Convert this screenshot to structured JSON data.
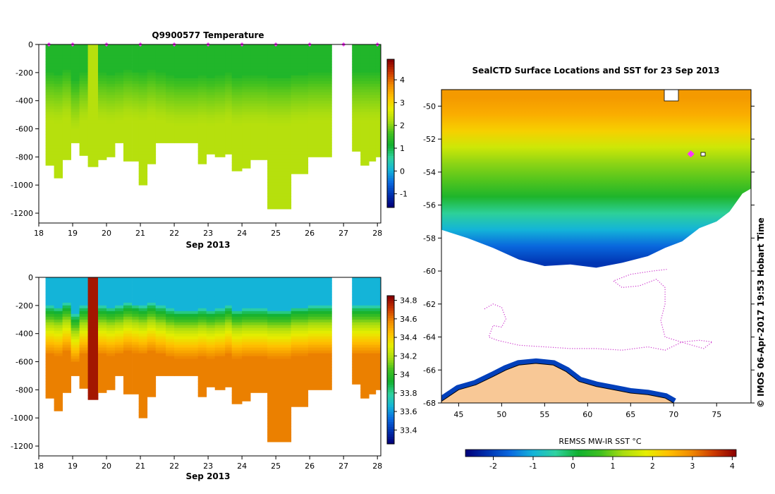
{
  "colors": {
    "ramp": [
      "#00007a",
      "#0033b0",
      "#0a6ae0",
      "#14b4d8",
      "#2fd2a0",
      "#10b030",
      "#40c020",
      "#aadd10",
      "#e6ee00",
      "#ffc000",
      "#f08a00",
      "#cc3a00",
      "#8a0000"
    ],
    "land": "#f8c896",
    "track": "#cc33cc",
    "marker": "#ff33ff"
  },
  "page": {
    "credit": "© IMOS 06-Apr-2017 19:53 Hobart Time"
  },
  "chart_data": [
    {
      "type": "heatmap",
      "title": "Q9900577  Temperature",
      "xlabel": "Sep 2013",
      "ylabel": "",
      "xlim": [
        18,
        28.1
      ],
      "ylim": [
        -1270,
        0
      ],
      "xticks": [
        18,
        19,
        20,
        21,
        22,
        23,
        24,
        25,
        26,
        27,
        28
      ],
      "yticks": [
        0,
        -200,
        -400,
        -600,
        -800,
        -1000,
        -1200
      ],
      "ytick_labels": [
        "0",
        "-200",
        "-400",
        "-600",
        "-800",
        "-1000",
        "-1200"
      ],
      "profile_times": [
        18.3,
        19.0,
        20.0,
        21.0,
        22.0,
        23.0,
        24.0,
        25.0,
        26.0,
        27.0,
        28.0
      ],
      "profiles": [
        {
          "x0": 18.2,
          "x1": 18.45,
          "surface": 1.3,
          "mixed_depth": 200,
          "deep": 2.3,
          "max_depth": 860
        },
        {
          "x0": 18.45,
          "x1": 18.7,
          "surface": 1.3,
          "mixed_depth": 210,
          "deep": 2.3,
          "max_depth": 950
        },
        {
          "x0": 18.7,
          "x1": 18.95,
          "surface": 1.3,
          "mixed_depth": 180,
          "deep": 2.3,
          "max_depth": 820
        },
        {
          "x0": 18.95,
          "x1": 19.2,
          "surface": 1.3,
          "mixed_depth": 260,
          "deep": 2.3,
          "max_depth": 700
        },
        {
          "x0": 19.2,
          "x1": 19.45,
          "surface": 1.3,
          "mixed_depth": 200,
          "deep": 2.3,
          "max_depth": 790
        },
        {
          "x0": 19.45,
          "x1": 19.75,
          "surface": 2.3,
          "mixed_depth": 0,
          "deep": 2.3,
          "max_depth": 870
        },
        {
          "x0": 19.75,
          "x1": 20.0,
          "surface": 1.3,
          "mixed_depth": 200,
          "deep": 2.3,
          "max_depth": 820
        },
        {
          "x0": 20.0,
          "x1": 20.25,
          "surface": 1.3,
          "mixed_depth": 210,
          "deep": 2.3,
          "max_depth": 800
        },
        {
          "x0": 20.25,
          "x1": 20.5,
          "surface": 1.3,
          "mixed_depth": 200,
          "deep": 2.3,
          "max_depth": 700
        },
        {
          "x0": 20.5,
          "x1": 20.75,
          "surface": 1.3,
          "mixed_depth": 180,
          "deep": 2.3,
          "max_depth": 830
        },
        {
          "x0": 20.75,
          "x1": 20.95,
          "surface": 1.3,
          "mixed_depth": 190,
          "deep": 2.3,
          "max_depth": 830
        },
        {
          "x0": 20.95,
          "x1": 21.2,
          "surface": 1.3,
          "mixed_depth": 200,
          "deep": 2.3,
          "max_depth": 1000
        },
        {
          "x0": 21.2,
          "x1": 21.45,
          "surface": 1.3,
          "mixed_depth": 180,
          "deep": 2.3,
          "max_depth": 850
        },
        {
          "x0": 21.45,
          "x1": 21.75,
          "surface": 1.3,
          "mixed_depth": 200,
          "deep": 2.3,
          "max_depth": 700
        },
        {
          "x0": 21.75,
          "x1": 22.0,
          "surface": 1.3,
          "mixed_depth": 220,
          "deep": 2.3,
          "max_depth": 700
        },
        {
          "x0": 22.0,
          "x1": 22.7,
          "surface": 1.3,
          "mixed_depth": 230,
          "deep": 2.3,
          "max_depth": 700
        },
        {
          "x0": 22.7,
          "x1": 22.95,
          "surface": 1.3,
          "mixed_depth": 220,
          "deep": 2.3,
          "max_depth": 850
        },
        {
          "x0": 22.95,
          "x1": 23.2,
          "surface": 1.3,
          "mixed_depth": 230,
          "deep": 2.3,
          "max_depth": 780
        },
        {
          "x0": 23.2,
          "x1": 23.5,
          "surface": 1.3,
          "mixed_depth": 220,
          "deep": 2.3,
          "max_depth": 800
        },
        {
          "x0": 23.5,
          "x1": 23.7,
          "surface": 1.3,
          "mixed_depth": 200,
          "deep": 2.3,
          "max_depth": 780
        },
        {
          "x0": 23.7,
          "x1": 24.0,
          "surface": 1.3,
          "mixed_depth": 230,
          "deep": 2.3,
          "max_depth": 900
        },
        {
          "x0": 24.0,
          "x1": 24.25,
          "surface": 1.3,
          "mixed_depth": 220,
          "deep": 2.3,
          "max_depth": 880
        },
        {
          "x0": 24.25,
          "x1": 24.75,
          "surface": 1.3,
          "mixed_depth": 220,
          "deep": 2.3,
          "max_depth": 820
        },
        {
          "x0": 24.75,
          "x1": 25.45,
          "surface": 1.3,
          "mixed_depth": 230,
          "deep": 2.3,
          "max_depth": 1170
        },
        {
          "x0": 25.45,
          "x1": 25.95,
          "surface": 1.3,
          "mixed_depth": 210,
          "deep": 2.3,
          "max_depth": 920
        },
        {
          "x0": 25.95,
          "x1": 26.65,
          "surface": 1.3,
          "mixed_depth": 200,
          "deep": 2.3,
          "max_depth": 800
        },
        {
          "x0": 27.25,
          "x1": 27.5,
          "surface": 1.3,
          "mixed_depth": 200,
          "deep": 2.3,
          "max_depth": 760
        },
        {
          "x0": 27.5,
          "x1": 27.75,
          "surface": 1.3,
          "mixed_depth": 200,
          "deep": 2.3,
          "max_depth": 860
        },
        {
          "x0": 27.75,
          "x1": 27.95,
          "surface": 1.3,
          "mixed_depth": 200,
          "deep": 2.3,
          "max_depth": 830
        },
        {
          "x0": 27.95,
          "x1": 28.1,
          "surface": 1.3,
          "mixed_depth": 200,
          "deep": 2.3,
          "max_depth": 800
        }
      ],
      "colorbar": {
        "vmin": -1.6,
        "vmax": 4.9,
        "ticks": [
          -1,
          0,
          1,
          2,
          3,
          4
        ]
      }
    },
    {
      "type": "heatmap",
      "title": "",
      "xlabel": "Sep 2013",
      "ylabel": "",
      "xlim": [
        18,
        28.1
      ],
      "ylim": [
        -1270,
        0
      ],
      "xticks": [
        18,
        19,
        20,
        21,
        22,
        23,
        24,
        25,
        26,
        27,
        28
      ],
      "yticks": [
        0,
        -200,
        -400,
        -600,
        -800,
        -1000,
        -1200
      ],
      "ytick_labels": [
        "0",
        "-200",
        "-400",
        "-600",
        "-800",
        "-1000",
        "-1200"
      ],
      "profile_times": [],
      "profiles": [
        {
          "x0": 18.2,
          "x1": 18.45,
          "surface": 33.65,
          "mixed_depth": 200,
          "deep": 34.6,
          "max_depth": 860
        },
        {
          "x0": 18.45,
          "x1": 18.7,
          "surface": 33.65,
          "mixed_depth": 210,
          "deep": 34.6,
          "max_depth": 950
        },
        {
          "x0": 18.7,
          "x1": 18.95,
          "surface": 33.65,
          "mixed_depth": 180,
          "deep": 34.6,
          "max_depth": 820
        },
        {
          "x0": 18.95,
          "x1": 19.2,
          "surface": 33.65,
          "mixed_depth": 260,
          "deep": 34.6,
          "max_depth": 700
        },
        {
          "x0": 19.2,
          "x1": 19.45,
          "surface": 33.65,
          "mixed_depth": 200,
          "deep": 34.6,
          "max_depth": 790
        },
        {
          "x0": 19.45,
          "x1": 19.75,
          "surface": 34.8,
          "mixed_depth": 0,
          "deep": 34.8,
          "max_depth": 870
        },
        {
          "x0": 19.75,
          "x1": 20.0,
          "surface": 33.65,
          "mixed_depth": 200,
          "deep": 34.6,
          "max_depth": 820
        },
        {
          "x0": 20.0,
          "x1": 20.25,
          "surface": 33.65,
          "mixed_depth": 210,
          "deep": 34.6,
          "max_depth": 800
        },
        {
          "x0": 20.25,
          "x1": 20.5,
          "surface": 33.65,
          "mixed_depth": 200,
          "deep": 34.6,
          "max_depth": 700
        },
        {
          "x0": 20.5,
          "x1": 20.75,
          "surface": 33.65,
          "mixed_depth": 180,
          "deep": 34.6,
          "max_depth": 830
        },
        {
          "x0": 20.75,
          "x1": 20.95,
          "surface": 33.65,
          "mixed_depth": 190,
          "deep": 34.6,
          "max_depth": 830
        },
        {
          "x0": 20.95,
          "x1": 21.2,
          "surface": 33.65,
          "mixed_depth": 200,
          "deep": 34.6,
          "max_depth": 1000
        },
        {
          "x0": 21.2,
          "x1": 21.45,
          "surface": 33.65,
          "mixed_depth": 180,
          "deep": 34.6,
          "max_depth": 850
        },
        {
          "x0": 21.45,
          "x1": 21.75,
          "surface": 33.65,
          "mixed_depth": 200,
          "deep": 34.6,
          "max_depth": 700
        },
        {
          "x0": 21.75,
          "x1": 22.0,
          "surface": 33.65,
          "mixed_depth": 220,
          "deep": 34.6,
          "max_depth": 700
        },
        {
          "x0": 22.0,
          "x1": 22.7,
          "surface": 33.65,
          "mixed_depth": 230,
          "deep": 34.6,
          "max_depth": 700
        },
        {
          "x0": 22.7,
          "x1": 22.95,
          "surface": 33.65,
          "mixed_depth": 220,
          "deep": 34.6,
          "max_depth": 850
        },
        {
          "x0": 22.95,
          "x1": 23.2,
          "surface": 33.65,
          "mixed_depth": 230,
          "deep": 34.6,
          "max_depth": 780
        },
        {
          "x0": 23.2,
          "x1": 23.5,
          "surface": 33.65,
          "mixed_depth": 220,
          "deep": 34.6,
          "max_depth": 800
        },
        {
          "x0": 23.5,
          "x1": 23.7,
          "surface": 33.65,
          "mixed_depth": 200,
          "deep": 34.6,
          "max_depth": 780
        },
        {
          "x0": 23.7,
          "x1": 24.0,
          "surface": 33.65,
          "mixed_depth": 230,
          "deep": 34.6,
          "max_depth": 900
        },
        {
          "x0": 24.0,
          "x1": 24.25,
          "surface": 33.65,
          "mixed_depth": 220,
          "deep": 34.6,
          "max_depth": 880
        },
        {
          "x0": 24.25,
          "x1": 24.75,
          "surface": 33.65,
          "mixed_depth": 220,
          "deep": 34.6,
          "max_depth": 820
        },
        {
          "x0": 24.75,
          "x1": 25.45,
          "surface": 33.65,
          "mixed_depth": 230,
          "deep": 34.6,
          "max_depth": 1170
        },
        {
          "x0": 25.45,
          "x1": 25.95,
          "surface": 33.65,
          "mixed_depth": 210,
          "deep": 34.6,
          "max_depth": 920
        },
        {
          "x0": 25.95,
          "x1": 26.65,
          "surface": 33.65,
          "mixed_depth": 200,
          "deep": 34.6,
          "max_depth": 800
        },
        {
          "x0": 27.25,
          "x1": 27.5,
          "surface": 33.65,
          "mixed_depth": 200,
          "deep": 34.6,
          "max_depth": 760
        },
        {
          "x0": 27.5,
          "x1": 27.75,
          "surface": 33.65,
          "mixed_depth": 200,
          "deep": 34.6,
          "max_depth": 860
        },
        {
          "x0": 27.75,
          "x1": 27.95,
          "surface": 33.65,
          "mixed_depth": 200,
          "deep": 34.6,
          "max_depth": 830
        },
        {
          "x0": 27.95,
          "x1": 28.1,
          "surface": 33.65,
          "mixed_depth": 200,
          "deep": 34.6,
          "max_depth": 800
        }
      ],
      "colorbar": {
        "vmin": 33.25,
        "vmax": 34.85,
        "ticks": [
          33.4,
          33.6,
          33.8,
          34,
          34.2,
          34.4,
          34.6,
          34.8
        ],
        "tick_labels": [
          "33.4",
          "33.6",
          "33.8",
          "34",
          "34.2",
          "34.4",
          "34.6",
          "34.8"
        ]
      }
    },
    {
      "type": "heatmap",
      "title": "SealCTD Surface Locations and SST for 23 Sep 2013",
      "xlabel": "",
      "ylabel": "",
      "xlim": [
        43,
        79
      ],
      "ylim": [
        -68,
        -49
      ],
      "xticks": [
        45,
        50,
        55,
        60,
        65,
        70,
        75
      ],
      "yticks": [
        -50,
        -52,
        -54,
        -56,
        -58,
        -60,
        -62,
        -64,
        -66,
        -68
      ],
      "sst_bands": [
        {
          "lat": -49.5,
          "sst": 2.8
        },
        {
          "lat": -50.5,
          "sst": 2.6
        },
        {
          "lat": -51.5,
          "sst": 2.2
        },
        {
          "lat": -52.5,
          "sst": 1.6
        },
        {
          "lat": -53.5,
          "sst": 1.1
        },
        {
          "lat": -54.5,
          "sst": 0.8
        },
        {
          "lat": -55.5,
          "sst": 0.3
        },
        {
          "lat": -56.5,
          "sst": -0.4
        },
        {
          "lat": -57.5,
          "sst": -1.0
        },
        {
          "lat": -58.5,
          "sst": -1.6
        },
        {
          "lat": -59.5,
          "sst": -2.1
        }
      ],
      "ice_edge": [
        [
          43,
          -57.5
        ],
        [
          46,
          -58.0
        ],
        [
          49,
          -58.6
        ],
        [
          52,
          -59.3
        ],
        [
          55,
          -59.7
        ],
        [
          58,
          -59.6
        ],
        [
          61,
          -59.8
        ],
        [
          64,
          -59.5
        ],
        [
          67,
          -59.1
        ],
        [
          69,
          -58.6
        ],
        [
          71,
          -58.2
        ],
        [
          73,
          -57.4
        ],
        [
          75,
          -57.0
        ],
        [
          76.5,
          -56.4
        ],
        [
          78,
          -55.3
        ],
        [
          79,
          -55.0
        ]
      ],
      "antarctic_coast": [
        [
          43,
          -67.9
        ],
        [
          45,
          -67.2
        ],
        [
          47,
          -66.9
        ],
        [
          49,
          -66.4
        ],
        [
          50.5,
          -66.0
        ],
        [
          52,
          -65.7
        ],
        [
          54,
          -65.6
        ],
        [
          56,
          -65.7
        ],
        [
          57.5,
          -66.1
        ],
        [
          59,
          -66.7
        ],
        [
          61,
          -67.0
        ],
        [
          63,
          -67.2
        ],
        [
          65,
          -67.4
        ],
        [
          67,
          -67.5
        ],
        [
          69,
          -67.7
        ],
        [
          70,
          -68.0
        ]
      ],
      "seal_track": [
        [
          48,
          -62.3
        ],
        [
          49,
          -62.0
        ],
        [
          50,
          -62.2
        ],
        [
          50.5,
          -62.9
        ],
        [
          50,
          -63.4
        ],
        [
          49,
          -63.3
        ],
        [
          48.5,
          -64.0
        ],
        [
          49.5,
          -64.2
        ],
        [
          52,
          -64.5
        ],
        [
          55,
          -64.6
        ],
        [
          58,
          -64.7
        ],
        [
          61,
          -64.7
        ],
        [
          64,
          -64.8
        ],
        [
          67,
          -64.6
        ],
        [
          69,
          -64.8
        ],
        [
          71,
          -64.3
        ],
        [
          73,
          -64.2
        ],
        [
          74.5,
          -64.3
        ],
        [
          73.5,
          -64.7
        ],
        [
          71.5,
          -64.4
        ],
        [
          69,
          -64.0
        ],
        [
          68.5,
          -63.0
        ],
        [
          69,
          -62.0
        ],
        [
          69,
          -61.0
        ],
        [
          68,
          -60.5
        ],
        [
          66,
          -60.9
        ],
        [
          64,
          -61.0
        ],
        [
          63,
          -60.6
        ],
        [
          65,
          -60.2
        ],
        [
          67.5,
          -60.0
        ],
        [
          69.2,
          -59.9
        ]
      ],
      "marker": {
        "lon": 72,
        "lat": -52.9
      },
      "colorbar": {
        "label": "REMSS MW-IR SST °C",
        "vmin": -2.7,
        "vmax": 4.1,
        "ticks": [
          -2,
          -1,
          0,
          1,
          2,
          3,
          4
        ]
      }
    }
  ]
}
